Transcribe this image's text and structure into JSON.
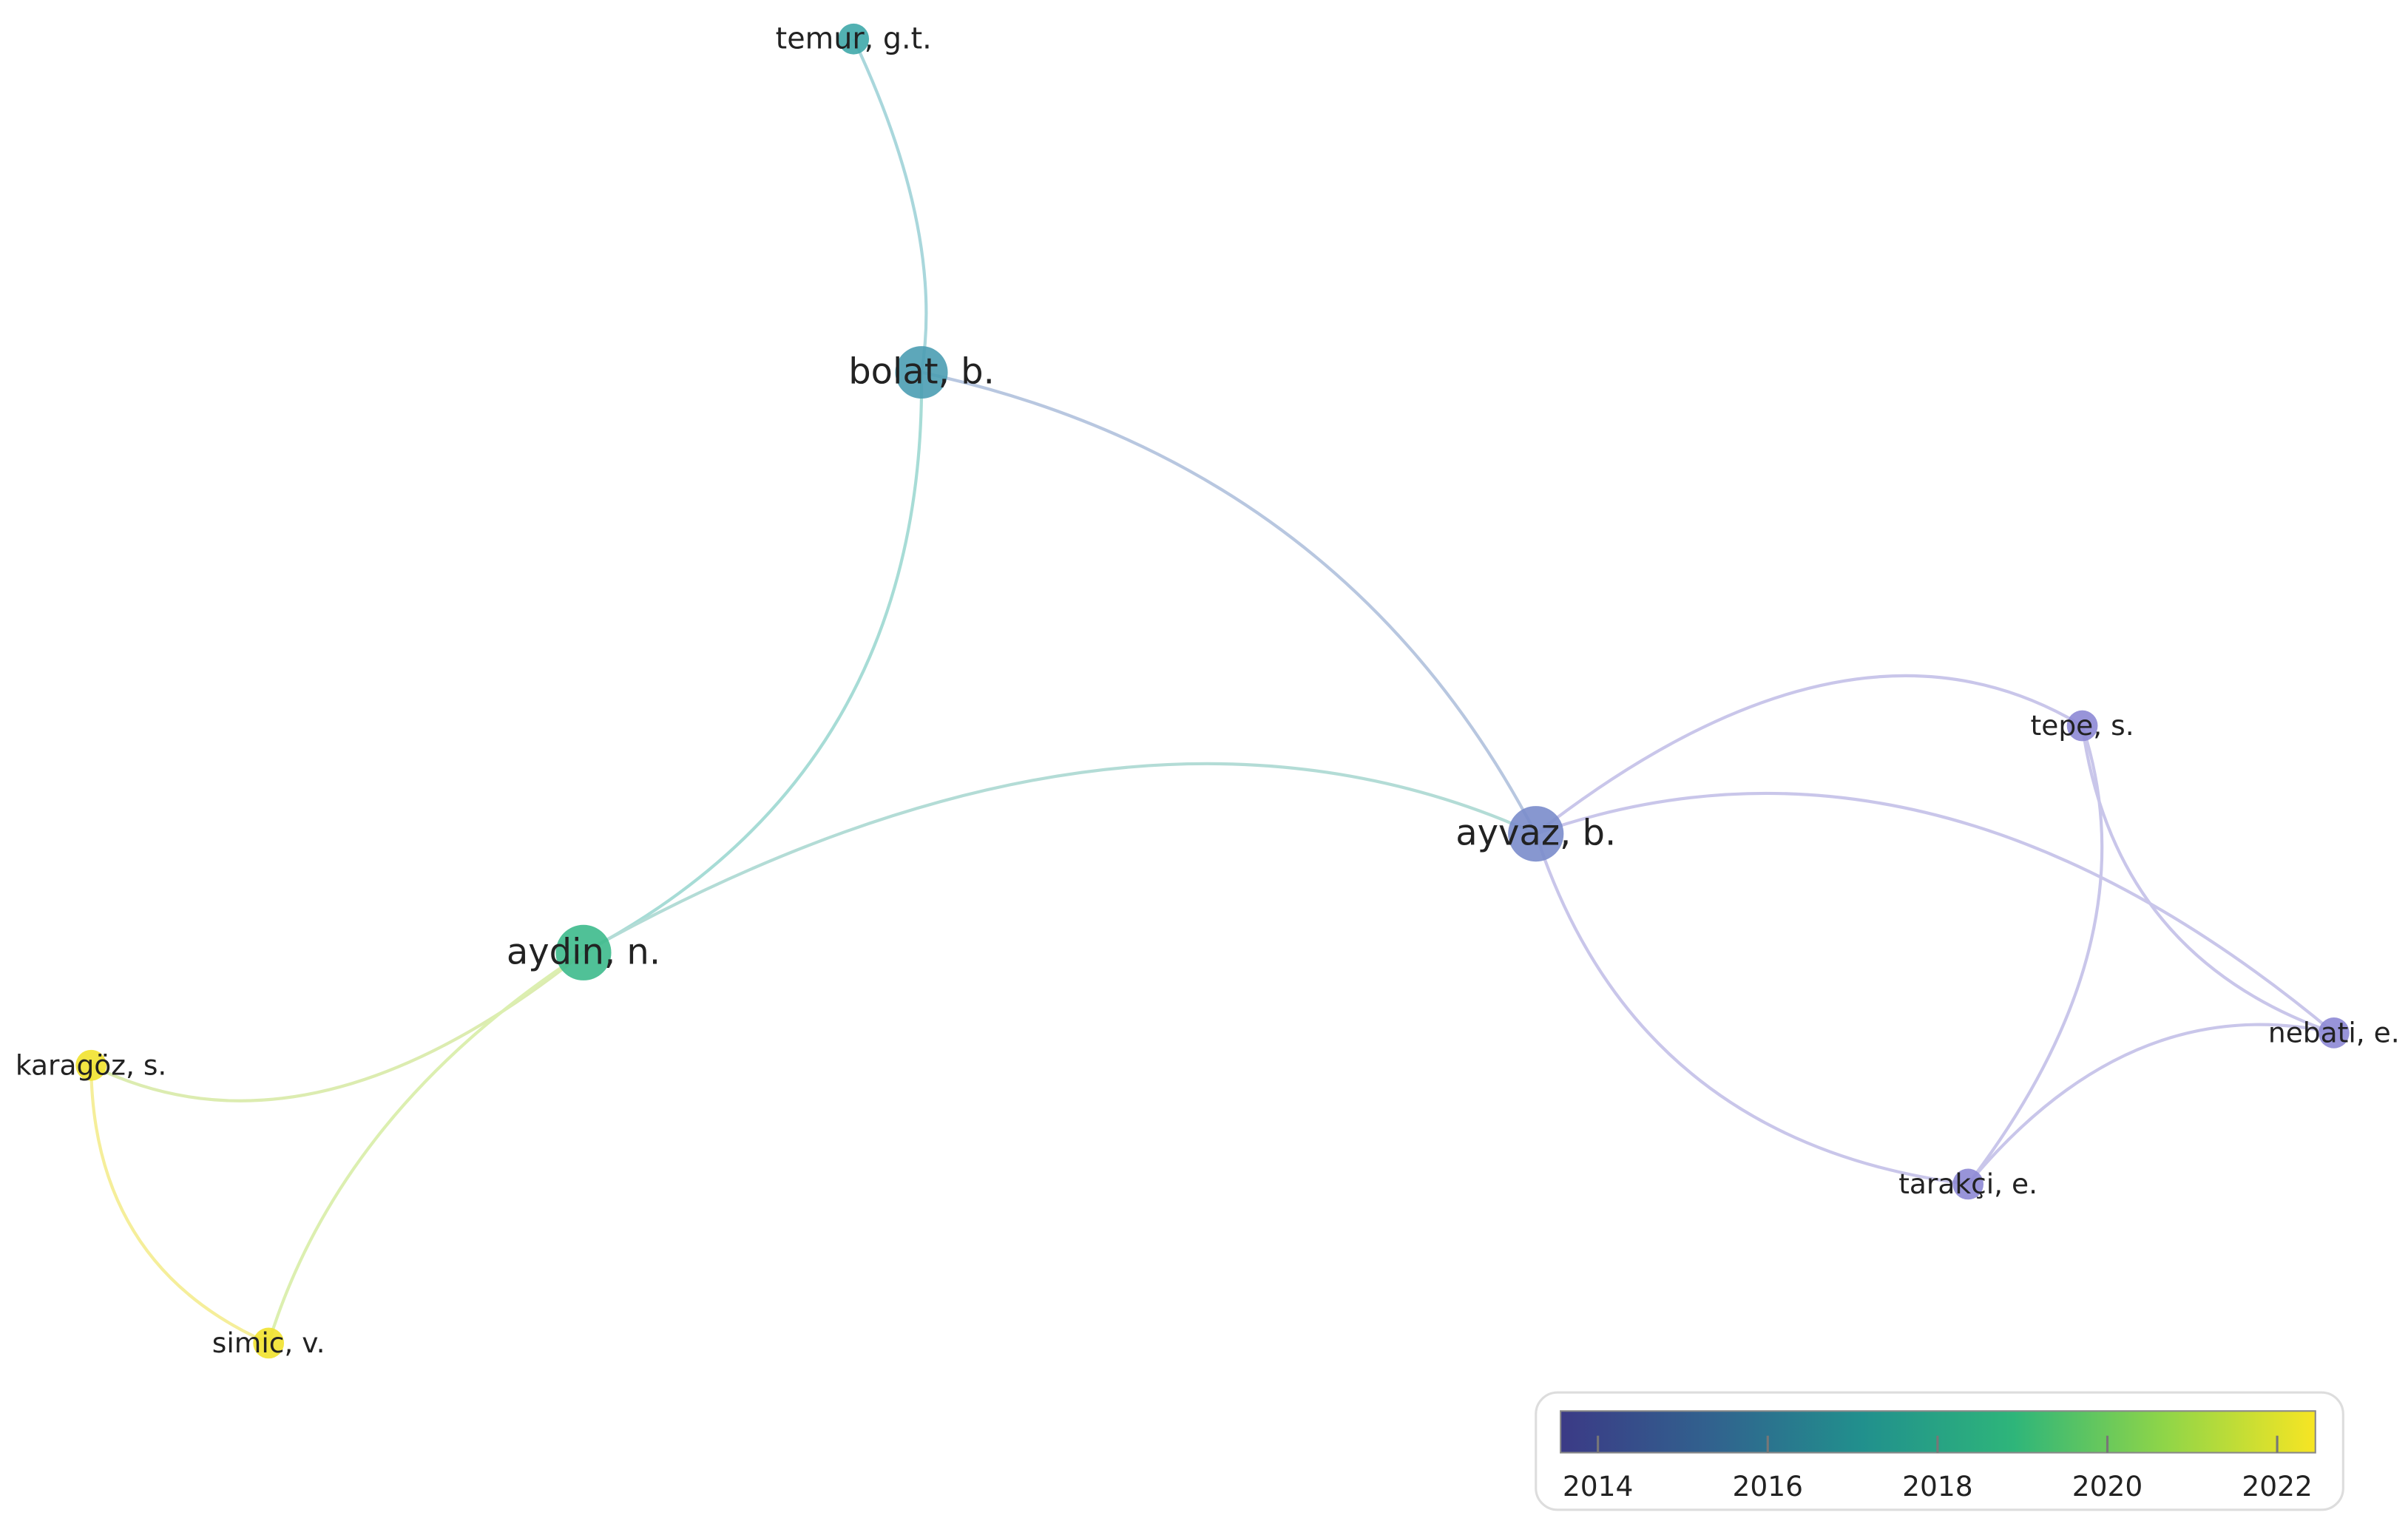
{
  "nodes": [
    {
      "label": "temur, g.t.",
      "color": "#3fa9aa"
    },
    {
      "label": "bolat, b.",
      "color": "#4b9db3"
    },
    {
      "label": "ayvaz, b.",
      "color": "#7a8ccb"
    },
    {
      "label": "aydin, n.",
      "color": "#3dba8c"
    },
    {
      "label": "karagöz, s.",
      "color": "#f1e22e"
    },
    {
      "label": "simic, v.",
      "color": "#f1e22e"
    },
    {
      "label": "tepe, s.",
      "color": "#8d88d5"
    },
    {
      "label": "nebati, e.",
      "color": "#8d88d5"
    },
    {
      "label": "tarakçi, e.",
      "color": "#8d88d5"
    }
  ],
  "colorbar": {
    "range": [
      2013.56,
      2022.45
    ],
    "ticks": [
      2014,
      2016,
      2018,
      2020,
      2022
    ]
  }
}
